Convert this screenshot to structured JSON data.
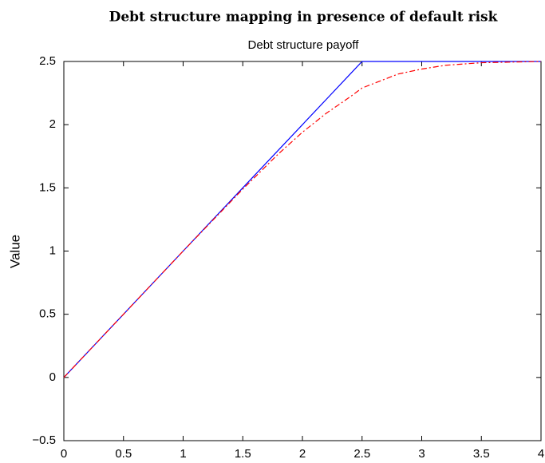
{
  "chart_data": {
    "type": "line",
    "title": "Debt structure mapping in presence of default risk",
    "subtitle": "Debt structure payoff",
    "y_label": "Value",
    "x": [
      0,
      0.5,
      1,
      1.5,
      1.8,
      2,
      2.2,
      2.4,
      2.5,
      2.8,
      3,
      3.2,
      3.5,
      4
    ],
    "series": [
      {
        "color": "#0000ff",
        "dash": "solid",
        "values": [
          0,
          0.5,
          1,
          1.5,
          1.8,
          2,
          2.2,
          2.4,
          2.5,
          2.5,
          2.5,
          2.5,
          2.5,
          2.5
        ]
      },
      {
        "color": "#ff0000",
        "dash": "dashdot",
        "values": [
          0,
          0.5,
          1,
          1.49,
          1.77,
          1.94,
          2.09,
          2.22,
          2.29,
          2.4,
          2.44,
          2.47,
          2.49,
          2.5
        ]
      }
    ],
    "xlim": [
      0,
      4
    ],
    "xticks": [
      0,
      0.5,
      1,
      1.5,
      2,
      2.5,
      3,
      3.5,
      4
    ],
    "ylim": [
      -0.5,
      2.5
    ],
    "yticks": [
      {
        "value": -0.5,
        "label": "−0.5"
      },
      0,
      0.5,
      1,
      1.5,
      2,
      2.5
    ],
    "grid": false
  }
}
